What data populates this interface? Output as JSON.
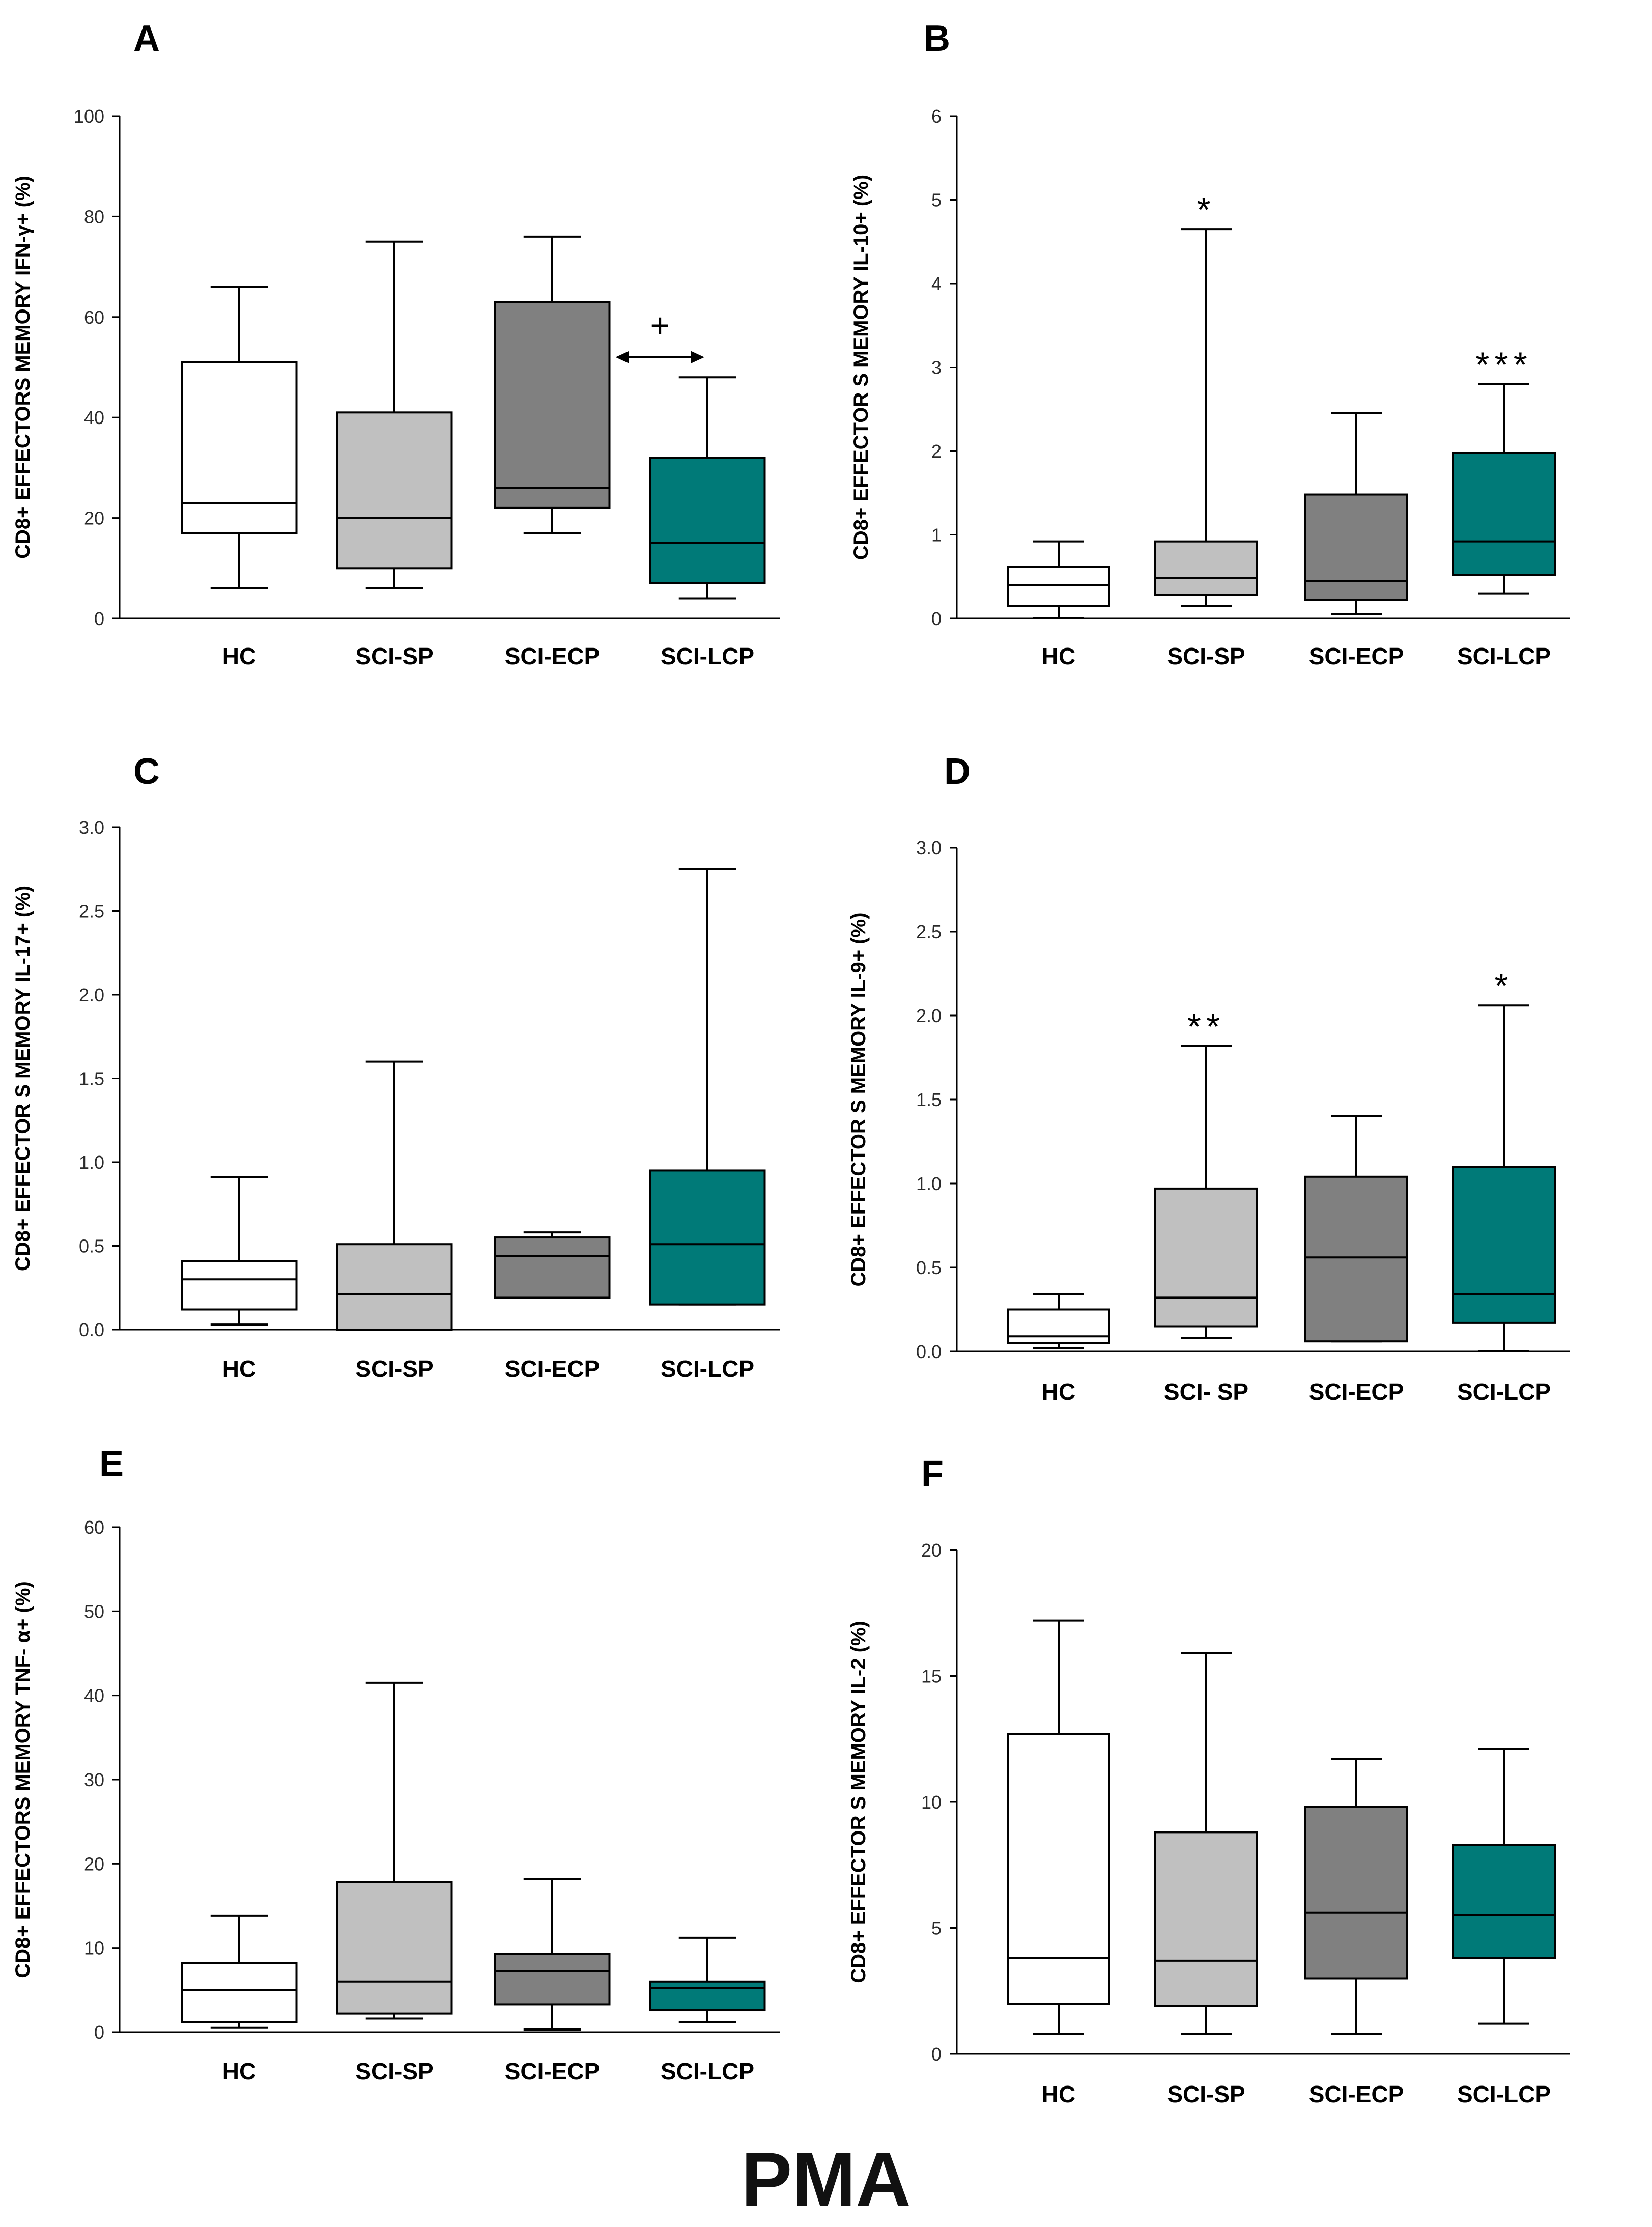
{
  "footer_label": "PMA",
  "colors": {
    "HC": "#ffffff",
    "SCI-SP": "#c0c0c0",
    "SCI-ECP": "#808080",
    "SCI-LCP": "#007a78",
    "axis": "#000000",
    "tick_text": "#2b2b2b"
  },
  "chart_data": [
    {
      "panel": "A",
      "type": "boxplot",
      "ylabel": "CD8+ EFFECTORS MEMORY IFN-γ+ (%)",
      "ylim": [
        0,
        100
      ],
      "yticks": [
        0,
        20,
        40,
        60,
        80,
        100
      ],
      "categories": [
        "HC",
        "SCI-SP",
        "SCI-ECP",
        "SCI-LCP"
      ],
      "boxes": [
        {
          "group": "HC",
          "min": 6,
          "q1": 17,
          "median": 23,
          "q3": 51,
          "max": 66,
          "sig": ""
        },
        {
          "group": "SCI-SP",
          "min": 6,
          "q1": 10,
          "median": 20,
          "q3": 41,
          "max": 75,
          "sig": ""
        },
        {
          "group": "SCI-ECP",
          "min": 17,
          "q1": 22,
          "median": 26,
          "q3": 63,
          "max": 76,
          "sig": ""
        },
        {
          "group": "SCI-LCP",
          "min": 4,
          "q1": 7,
          "median": 15,
          "q3": 32,
          "max": 48,
          "sig": ""
        }
      ],
      "comparison": {
        "from": "SCI-ECP",
        "to": "SCI-LCP",
        "symbol": "+",
        "level": 52
      }
    },
    {
      "panel": "B",
      "type": "boxplot",
      "ylabel": "CD8+ EFFECTOR S MEMORY IL-10+ (%)",
      "ylim": [
        0,
        6
      ],
      "yticks": [
        0,
        1,
        2,
        3,
        4,
        5,
        6
      ],
      "categories": [
        "HC",
        "SCI-SP",
        "SCI-ECP",
        "SCI-LCP"
      ],
      "boxes": [
        {
          "group": "HC",
          "min": 0,
          "q1": 0.15,
          "median": 0.4,
          "q3": 0.62,
          "max": 0.92,
          "sig": ""
        },
        {
          "group": "SCI-SP",
          "min": 0.15,
          "q1": 0.28,
          "median": 0.48,
          "q3": 0.92,
          "max": 4.65,
          "sig": "*"
        },
        {
          "group": "SCI-ECP",
          "min": 0.05,
          "q1": 0.22,
          "median": 0.45,
          "q3": 1.48,
          "max": 2.45,
          "sig": ""
        },
        {
          "group": "SCI-LCP",
          "min": 0.3,
          "q1": 0.52,
          "median": 0.92,
          "q3": 1.98,
          "max": 2.8,
          "sig": "***"
        }
      ]
    },
    {
      "panel": "C",
      "type": "boxplot",
      "ylabel": "CD8+ EFFECTOR S MEMORY IL-17+ (%)",
      "ylim": [
        0,
        3
      ],
      "yticks": [
        "0.0",
        "0.5",
        "1.0",
        "1.5",
        "2.0",
        "2.5",
        "3.0"
      ],
      "categories": [
        "HC",
        "SCI-SP",
        "SCI-ECP",
        "SCI-LCP"
      ],
      "boxes": [
        {
          "group": "HC",
          "min": 0.03,
          "q1": 0.12,
          "median": 0.3,
          "q3": 0.41,
          "max": 0.91,
          "sig": ""
        },
        {
          "group": "SCI-SP",
          "min": 0,
          "q1": 0,
          "median": 0.21,
          "q3": 0.51,
          "max": 1.6,
          "sig": ""
        },
        {
          "group": "SCI-ECP",
          "min": 0.19,
          "q1": 0.19,
          "median": 0.44,
          "q3": 0.55,
          "max": 0.58,
          "sig": ""
        },
        {
          "group": "SCI-LCP",
          "min": 0.15,
          "q1": 0.15,
          "median": 0.51,
          "q3": 0.95,
          "max": 2.75,
          "sig": ""
        }
      ]
    },
    {
      "panel": "D",
      "type": "boxplot",
      "ylabel": "CD8+ EFFECTOR S MEMORY IL-9+ (%)",
      "ylim": [
        0,
        3
      ],
      "yticks": [
        "0.0",
        "0.5",
        "1.0",
        "1.5",
        "2.0",
        "2.5",
        "3.0"
      ],
      "categories": [
        "HC",
        "SCI- SP",
        "SCI-ECP",
        "SCI-LCP"
      ],
      "boxes": [
        {
          "group": "HC",
          "min": 0.02,
          "q1": 0.05,
          "median": 0.09,
          "q3": 0.25,
          "max": 0.34,
          "sig": ""
        },
        {
          "group": "SCI- SP",
          "min": 0.08,
          "q1": 0.15,
          "median": 0.32,
          "q3": 0.97,
          "max": 1.82,
          "sig": "**"
        },
        {
          "group": "SCI-ECP",
          "min": 0.06,
          "q1": 0.06,
          "median": 0.56,
          "q3": 1.04,
          "max": 1.4,
          "sig": ""
        },
        {
          "group": "SCI-LCP",
          "min": 0,
          "q1": 0.17,
          "median": 0.34,
          "q3": 1.1,
          "max": 2.06,
          "sig": "*"
        }
      ]
    },
    {
      "panel": "E",
      "type": "boxplot",
      "ylabel": "CD8+ EFFECTORS MEMORY TNF- α+ (%)",
      "ylim": [
        0,
        60
      ],
      "yticks": [
        0,
        10,
        20,
        30,
        40,
        50,
        60
      ],
      "categories": [
        "HC",
        "SCI-SP",
        "SCI-ECP",
        "SCI-LCP"
      ],
      "boxes": [
        {
          "group": "HC",
          "min": 0.5,
          "q1": 1.2,
          "median": 5,
          "q3": 8.2,
          "max": 13.8,
          "sig": ""
        },
        {
          "group": "SCI-SP",
          "min": 1.6,
          "q1": 2.2,
          "median": 6,
          "q3": 17.8,
          "max": 41.5,
          "sig": ""
        },
        {
          "group": "SCI-ECP",
          "min": 0.3,
          "q1": 3.3,
          "median": 7.2,
          "q3": 9.3,
          "max": 18.2,
          "sig": ""
        },
        {
          "group": "SCI-LCP",
          "min": 1.2,
          "q1": 2.6,
          "median": 5.2,
          "q3": 6,
          "max": 11.2,
          "sig": ""
        }
      ]
    },
    {
      "panel": "F",
      "type": "boxplot",
      "ylabel": "CD8+ EFFECTOR S MEMORY IL-2 (%)",
      "ylim": [
        0,
        20
      ],
      "yticks": [
        0,
        5,
        10,
        15,
        20
      ],
      "categories": [
        "HC",
        "SCI-SP",
        "SCI-ECP",
        "SCI-LCP"
      ],
      "boxes": [
        {
          "group": "HC",
          "min": 0.8,
          "q1": 2,
          "median": 3.8,
          "q3": 12.7,
          "max": 17.2,
          "sig": ""
        },
        {
          "group": "SCI-SP",
          "min": 0.8,
          "q1": 1.9,
          "median": 3.7,
          "q3": 8.8,
          "max": 15.9,
          "sig": ""
        },
        {
          "group": "SCI-ECP",
          "min": 0.8,
          "q1": 3,
          "median": 5.6,
          "q3": 9.8,
          "max": 11.7,
          "sig": ""
        },
        {
          "group": "SCI-LCP",
          "min": 1.2,
          "q1": 3.8,
          "median": 5.5,
          "q3": 8.3,
          "max": 12.1,
          "sig": ""
        }
      ]
    }
  ]
}
